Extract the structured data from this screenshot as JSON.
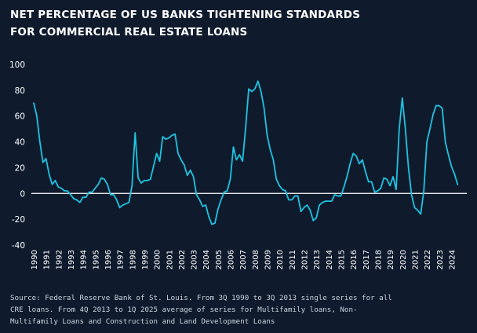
{
  "title": {
    "line1": "NET PERCENTAGE OF US BANKS TIGHTENING STANDARDS",
    "line2": "FOR COMMERCIAL REAL ESTATE LOANS"
  },
  "source": {
    "line1": "Source: Federal Reserve Bank of St. Louis. From 3Q 1990 to 3Q 2013 single series for all",
    "line2": "CRE loans. From 4Q 2013 to 1Q 2025 average of series for Multifamily loans, Non-",
    "line3": "Multifamily Loans and Construction and Land Development Loans"
  },
  "colors": {
    "background": "#0f1b2d",
    "line": "#1fc3e0",
    "zero_line": "#ffffff",
    "tick_text": "#ffffff"
  },
  "chart_data": {
    "type": "line",
    "title": "NET PERCENTAGE OF US BANKS TIGHTENING STANDARDS FOR COMMERCIAL REAL ESTATE LOANS",
    "xlabel": "",
    "ylabel": "",
    "ylim": [
      -40,
      100
    ],
    "xlim": [
      1990,
      2025.25
    ],
    "grid": false,
    "zero_line": true,
    "y_ticks": [
      100,
      80,
      60,
      40,
      20,
      0,
      -20,
      -40
    ],
    "x_ticks": [
      "1990",
      "1991",
      "1992",
      "1993",
      "1994",
      "1995",
      "1996",
      "1997",
      "1998",
      "1999",
      "2000",
      "2001",
      "2002",
      "2003",
      "2004",
      "2005",
      "2006",
      "2007",
      "2008",
      "2009",
      "2010",
      "2011",
      "2012",
      "2013",
      "2014",
      "2015",
      "2016",
      "2017",
      "2018",
      "2019",
      "2020",
      "2021",
      "2022",
      "2023",
      "2024"
    ],
    "series": [
      {
        "x": [
          1990.0,
          1990.25,
          1990.5,
          1990.75,
          1991.0,
          1991.25,
          1991.5,
          1991.75,
          1992.0,
          1992.25,
          1992.5,
          1992.75,
          1993.0,
          1993.25,
          1993.5,
          1993.75,
          1994.0,
          1994.25,
          1994.5,
          1994.75,
          1995.0,
          1995.25,
          1995.5,
          1995.75,
          1996.0,
          1996.25,
          1996.5,
          1996.75,
          1997.0,
          1997.25,
          1997.5,
          1997.75,
          1998.0,
          1998.25,
          1998.5,
          1998.75,
          1999.0,
          1999.25,
          1999.5,
          1999.75,
          2000.0,
          2000.25,
          2000.5,
          2000.75,
          2001.0,
          2001.25,
          2001.5,
          2001.75,
          2002.0,
          2002.25,
          2002.5,
          2002.75,
          2003.0,
          2003.25,
          2003.5,
          2003.75,
          2004.0,
          2004.25,
          2004.5,
          2004.75,
          2005.0,
          2005.25,
          2005.5,
          2005.75,
          2006.0,
          2006.25,
          2006.5,
          2006.75,
          2007.0,
          2007.25,
          2007.5,
          2007.75,
          2008.0,
          2008.25,
          2008.5,
          2008.75,
          2009.0,
          2009.25,
          2009.5,
          2009.75,
          2010.0,
          2010.25,
          2010.5,
          2010.75,
          2011.0,
          2011.25,
          2011.5,
          2011.75,
          2012.0,
          2012.25,
          2012.5,
          2012.75,
          2013.0,
          2013.25,
          2013.5,
          2013.75,
          2014.0,
          2014.25,
          2014.5,
          2014.75,
          2015.0,
          2015.25,
          2015.5,
          2015.75,
          2016.0,
          2016.25,
          2016.5,
          2016.75,
          2017.0,
          2017.25,
          2017.5,
          2017.75,
          2018.0,
          2018.25,
          2018.5,
          2018.75,
          2019.0,
          2019.25,
          2019.5,
          2019.75,
          2020.0,
          2020.25,
          2020.5,
          2020.75,
          2021.0,
          2021.25,
          2021.5,
          2021.75,
          2022.0,
          2022.25,
          2022.5,
          2022.75,
          2023.0,
          2023.25,
          2023.5,
          2023.75,
          2024.0,
          2024.25,
          2024.5
        ],
        "values": [
          70,
          60,
          40,
          24,
          27,
          15,
          7,
          10,
          5,
          4,
          2,
          2,
          -1,
          -4,
          -5,
          -7,
          -3,
          -3,
          1,
          1,
          4,
          7,
          12,
          11,
          7,
          -1,
          -1,
          -5,
          -11,
          -9,
          -8,
          -7,
          6,
          47,
          12,
          8,
          10,
          10,
          11,
          21,
          31,
          25,
          44,
          42,
          43,
          45,
          46,
          31,
          26,
          22,
          14,
          18,
          13,
          -1,
          -5,
          -10,
          -9,
          -18,
          -24,
          -23,
          -12,
          -5,
          1,
          2,
          11,
          36,
          26,
          30,
          25,
          51,
          81,
          79,
          81,
          87,
          79,
          66,
          45,
          34,
          26,
          11,
          6,
          3,
          2,
          -5,
          -5,
          -2,
          -2,
          -14,
          -11,
          -9,
          -13,
          -21,
          -19,
          -9,
          -7,
          -6,
          -6,
          -6,
          -1,
          -2,
          -2,
          5,
          13,
          23,
          31,
          29,
          23,
          26,
          17,
          9,
          9,
          1,
          2,
          4,
          12,
          11,
          6,
          13,
          3,
          50,
          74,
          50,
          20,
          -1,
          -11,
          -13,
          -16,
          2,
          40,
          50,
          61,
          68,
          68,
          66,
          40,
          30,
          21,
          15,
          7
        ]
      }
    ]
  }
}
